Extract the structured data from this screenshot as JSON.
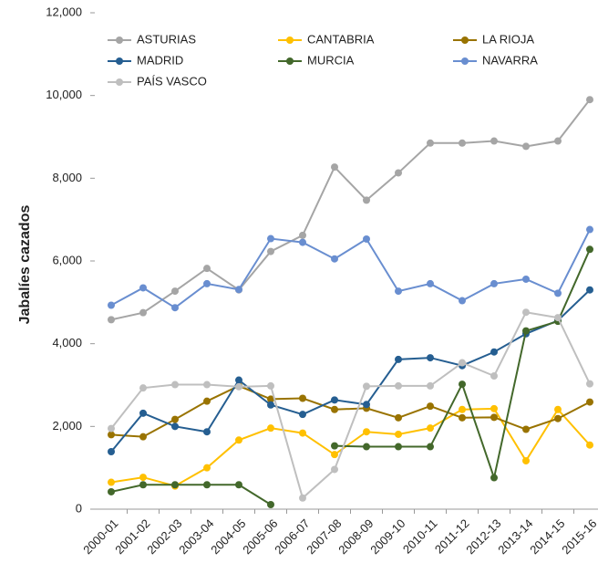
{
  "chart_data": {
    "type": "line",
    "ylabel": "Jabalíes cazados",
    "categories": [
      "2000-01",
      "2001-02",
      "2002-03",
      "2003-04",
      "2004-05",
      "2005-06",
      "2006-07",
      "2007-08",
      "2008-09",
      "2009-10",
      "2010-11",
      "2011-12",
      "2012-13",
      "2013-14",
      "2014-15",
      "2015-16"
    ],
    "series": [
      {
        "name": "ASTURIAS",
        "color": "#a5a5a5",
        "values": [
          4580,
          4750,
          5270,
          5820,
          5300,
          6230,
          6620,
          8270,
          7470,
          8130,
          8850,
          8850,
          8900,
          8770,
          8900,
          9900
        ]
      },
      {
        "name": "CANTABRIA",
        "color": "#ffc000",
        "values": [
          650,
          770,
          560,
          1000,
          1670,
          1960,
          1840,
          1320,
          1870,
          1810,
          1960,
          2410,
          2430,
          1170,
          2410,
          1550
        ]
      },
      {
        "name": "LA RIOJA",
        "color": "#997300",
        "values": [
          1800,
          1750,
          2170,
          2610,
          2980,
          2660,
          2680,
          2410,
          2440,
          2210,
          2490,
          2210,
          2220,
          1930,
          2190,
          2590
        ]
      },
      {
        "name": "MADRID",
        "color": "#255e91",
        "values": [
          1390,
          2320,
          2000,
          1870,
          3120,
          2520,
          2290,
          2640,
          2530,
          3620,
          3660,
          3470,
          3800,
          4240,
          4560,
          5300
        ]
      },
      {
        "name": "MURCIA",
        "color": "#43682b",
        "values": [
          420,
          590,
          590,
          590,
          590,
          110,
          null,
          1530,
          1510,
          1510,
          1510,
          3020,
          760,
          4310,
          4540,
          6280
        ]
      },
      {
        "name": "NAVARRA",
        "color": "#698ed0",
        "values": [
          4930,
          5350,
          4870,
          5450,
          5310,
          6540,
          6450,
          6050,
          6530,
          5270,
          5450,
          5040,
          5450,
          5560,
          5220,
          6760
        ]
      },
      {
        "name": "PAÍS VASCO",
        "color": "#bfbfbf",
        "values": [
          1950,
          2930,
          3010,
          3010,
          2960,
          2980,
          270,
          960,
          2970,
          2980,
          2980,
          3540,
          3220,
          4760,
          4630,
          3030
        ]
      }
    ],
    "ylim": [
      0,
      12000
    ],
    "yticks": [
      0,
      {
        "value": 2000,
        "label": "2,000"
      },
      {
        "value": 4000,
        "label": "4,000"
      },
      {
        "value": 6000,
        "label": "6,000"
      },
      {
        "value": 8000,
        "label": "8,000"
      },
      {
        "value": 10000,
        "label": "10,000"
      },
      {
        "value": 12000,
        "label": "12,000"
      }
    ],
    "grid": false
  }
}
